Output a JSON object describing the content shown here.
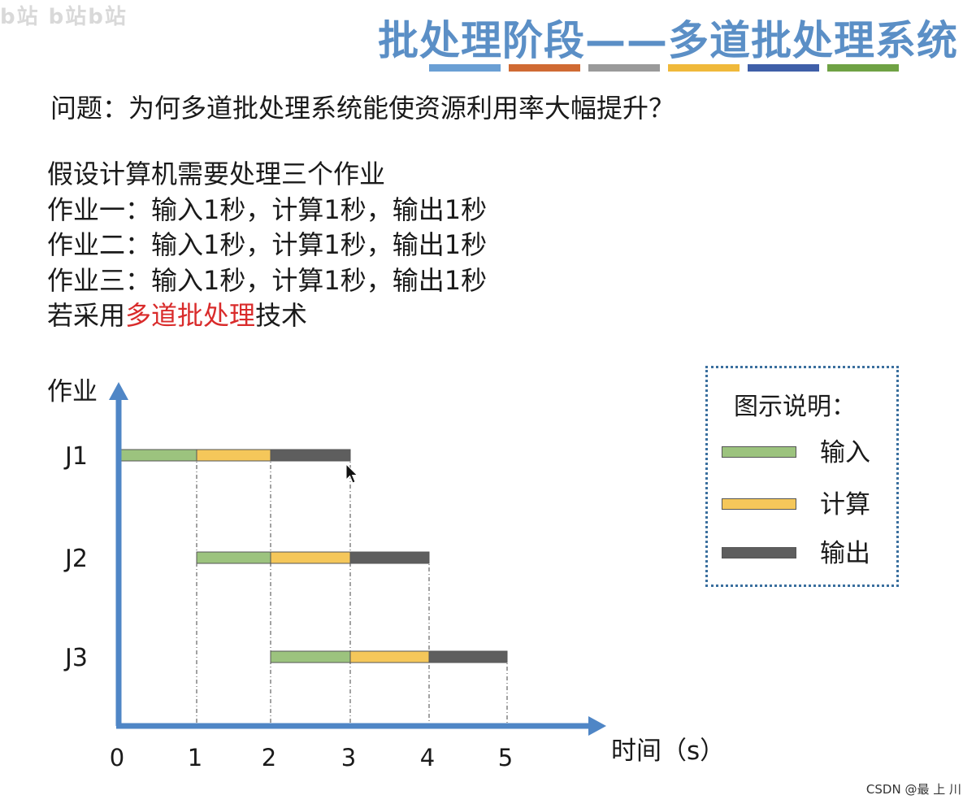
{
  "page": {
    "watermark": "b站 b站b站",
    "title": "批处理阶段——多道批处理系统",
    "stripe_colors": [
      "#6a9fd4",
      "#d06a33",
      "#9a9a9a",
      "#f0b93a",
      "#3f5fa8",
      "#6fa244"
    ],
    "question": "问题：为何多道批处理系统能使资源利用率大幅提升？",
    "assumption": "假设计算机需要处理三个作业",
    "jobs_text": [
      "作业一：输入1秒，计算1秒，输出1秒",
      "作业二：输入1秒，计算1秒，输出1秒",
      "作业三：输入1秒，计算1秒，输出1秒"
    ],
    "technique_prefix": "若采用",
    "technique_highlight": "多道批处理",
    "technique_suffix": "技术",
    "footer": "CSDN @最 上 川"
  },
  "legend": {
    "title": "图示说明：",
    "items": [
      {
        "label": "输入",
        "color": "#9cc37e"
      },
      {
        "label": "计算",
        "color": "#f5c75a"
      },
      {
        "label": "输出",
        "color": "#5e5e5e"
      }
    ]
  },
  "chart_data": {
    "type": "gantt",
    "ylabel": "作业",
    "xlabel": "时间（s）",
    "x_ticks": [
      "0",
      "1",
      "2",
      "3",
      "4",
      "5"
    ],
    "xlim": [
      0,
      5
    ],
    "axis_color": "#4f86c6",
    "jobs": [
      {
        "name": "J1",
        "segments": [
          {
            "phase": "输入",
            "start": 0,
            "end": 1
          },
          {
            "phase": "计算",
            "start": 1,
            "end": 2
          },
          {
            "phase": "输出",
            "start": 2,
            "end": 3
          }
        ]
      },
      {
        "name": "J2",
        "segments": [
          {
            "phase": "输入",
            "start": 1,
            "end": 2
          },
          {
            "phase": "计算",
            "start": 2,
            "end": 3
          },
          {
            "phase": "输出",
            "start": 3,
            "end": 4
          }
        ]
      },
      {
        "name": "J3",
        "segments": [
          {
            "phase": "输入",
            "start": 2,
            "end": 3
          },
          {
            "phase": "计算",
            "start": 3,
            "end": 4
          },
          {
            "phase": "输出",
            "start": 4,
            "end": 5
          }
        ]
      }
    ]
  }
}
